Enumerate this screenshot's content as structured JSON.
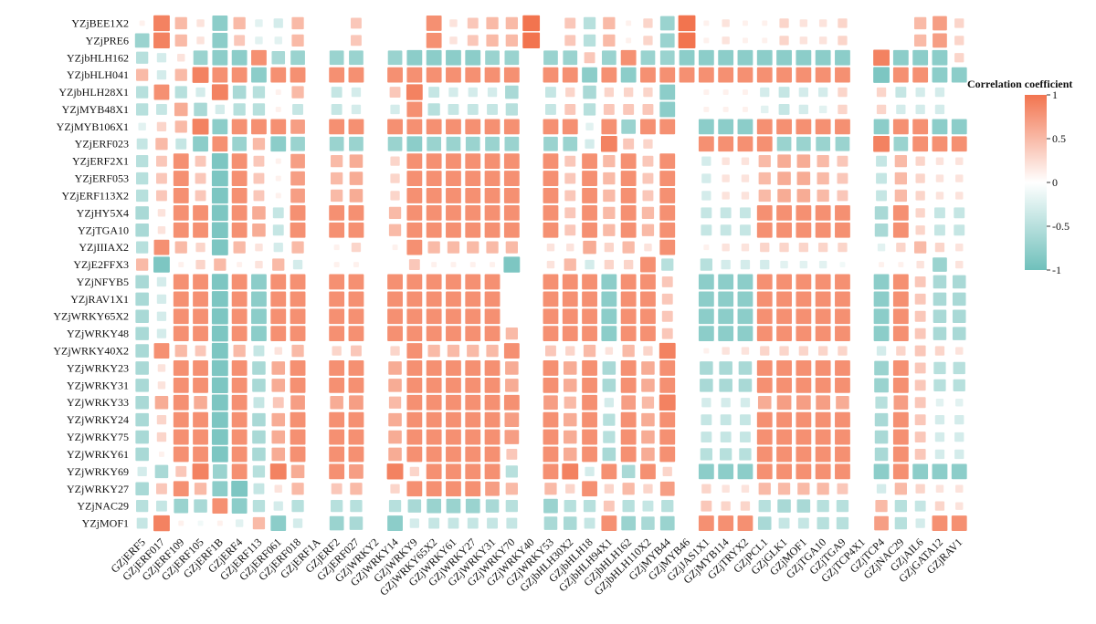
{
  "chart_data": {
    "type": "heatmap",
    "title": "",
    "xlabel": "",
    "ylabel": "",
    "rows": [
      "YZjBEE1X2",
      "YZjPRE6",
      "YZjbHLH162",
      "YZjbHLH041",
      "YZjbHLH28X1",
      "YZjMYB48X1",
      "YZjMYB106X1",
      "YZjERF023",
      "YZjERF2X1",
      "YZjERF053",
      "YZjERF113X2",
      "YZjHY5X4",
      "YZjTGA10",
      "YZjIIIAX2",
      "YZjE2FFX3",
      "YZjNFYB5",
      "YZjRAV1X1",
      "YZjWRKY65X2",
      "YZjWRKY48",
      "YZjWRKY40X2",
      "YZjWRKY23",
      "YZjWRKY31",
      "YZjWRKY33",
      "YZjWRKY24",
      "YZjWRKY75",
      "YZjWRKY61",
      "YZjWRKY69",
      "YZjWRKY27",
      "YZjNAC29",
      "YZjMOF1"
    ],
    "columns": [
      "GZjERF5",
      "GZjERF017",
      "GZjERF109",
      "GZjERF105",
      "GZjERF1B",
      "GZjERF4",
      "GZjERF113",
      "GZjERF061",
      "GZjERF018",
      "GZjERF1A",
      "GZjERF2",
      "GZjERF027",
      "GZjWRKY2",
      "GZjWRKY14",
      "GZjWRKY9",
      "GZjWRKY65X2",
      "GZjWRKY61",
      "GZjWRKY27",
      "GZjWRKY31",
      "GZjWRKY70",
      "GZjWRKY40",
      "GZjWRKY53",
      "GZjbHLH30X2",
      "GZjbHLH18",
      "GZjbHLH94X1",
      "GZjbHLH162",
      "GZjbHLH110X2",
      "GZjMYB44",
      "GZjMYB46",
      "GZjJAS1X1",
      "GZjMYB114",
      "GZjTRYX2",
      "GZjPCL1",
      "GZjGLK1",
      "GZjMOF1",
      "GZjTGA10",
      "GZjTGA9",
      "GZjTCP4X1",
      "GZjTCP4",
      "GZjNAC29",
      "GZjAIL6",
      "GZjGATA12",
      "GZjRAV1"
    ],
    "color_scale": {
      "min": -1,
      "max": 1,
      "low_color": "#6fc0bb",
      "mid_color": "#ffffff",
      "high_color": "#f2744f"
    },
    "legend": {
      "title": "Correlation coefficient",
      "ticks": [
        "1",
        "0.5",
        "0",
        "-0.5",
        "-1"
      ],
      "placement": "right"
    },
    "values": [
      [
        0.1,
        0.9,
        0.5,
        0.2,
        -0.8,
        0.5,
        -0.2,
        -0.3,
        0.5,
        0,
        0,
        0.4,
        0,
        0,
        0,
        0.8,
        0.2,
        0.4,
        0.5,
        0.5,
        1,
        0,
        0.4,
        -0.5,
        0.5,
        0.1,
        0.3,
        -0.7,
        1,
        0.1,
        0.2,
        0.1,
        0.1,
        0.3,
        0.2,
        0.2,
        0.3,
        0,
        0,
        0,
        0.5,
        0.7,
        0.3
      ],
      [
        -0.7,
        0.9,
        0.5,
        0.2,
        -0.8,
        0.4,
        -0.2,
        -0.2,
        0.5,
        0,
        0,
        0.4,
        0,
        0,
        0,
        0.8,
        0.2,
        0.4,
        0.5,
        0.5,
        1,
        0,
        0.4,
        -0.5,
        0.5,
        0.1,
        0.3,
        -0.7,
        1,
        0.1,
        0.2,
        0.1,
        0.1,
        0.3,
        0.2,
        0.2,
        0.3,
        0,
        0,
        0,
        0.5,
        0.7,
        0.3
      ],
      [
        -0.5,
        -0.3,
        0.2,
        -0.7,
        -0.8,
        -0.8,
        0.8,
        -0.6,
        -0.7,
        0,
        -0.7,
        -0.7,
        0,
        -0.7,
        -0.8,
        -0.8,
        -0.8,
        -0.8,
        -0.7,
        -0.7,
        0,
        -0.7,
        -0.7,
        0.4,
        -0.7,
        0.8,
        -0.7,
        -0.7,
        -0.8,
        -0.8,
        -0.8,
        -0.8,
        -0.8,
        -0.8,
        -0.8,
        -0.8,
        -0.8,
        0,
        0.9,
        -0.8,
        -0.8,
        -0.8,
        0.3
      ],
      [
        0.5,
        -0.3,
        0.5,
        0.9,
        0.8,
        0.8,
        -0.8,
        0.8,
        0.8,
        0,
        0.8,
        0.8,
        0,
        0.8,
        0.8,
        0.8,
        0.8,
        0.8,
        0.8,
        0.8,
        0,
        0.8,
        0.8,
        -0.8,
        0.8,
        -0.8,
        0.8,
        0.8,
        0.8,
        0.8,
        0.8,
        0.8,
        0.8,
        0.8,
        0.8,
        0.8,
        0.8,
        0,
        -0.9,
        0.8,
        0.8,
        -0.8,
        -0.8
      ],
      [
        -0.5,
        0.8,
        -0.5,
        -0.3,
        0.9,
        -0.6,
        -0.5,
        0.1,
        0.5,
        0,
        -0.4,
        -0.3,
        0,
        0.4,
        0.9,
        -0.4,
        -0.3,
        -0.3,
        -0.3,
        -0.6,
        0,
        -0.4,
        0.3,
        -0.6,
        0.3,
        0.3,
        0.3,
        -0.8,
        0,
        0.1,
        0.1,
        0.1,
        -0.3,
        -0.4,
        -0.3,
        -0.3,
        0.3,
        0,
        0.3,
        -0.4,
        -0.3,
        -0.3,
        0
      ],
      [
        -0.5,
        -0.4,
        0.6,
        -0.6,
        -0.3,
        -0.5,
        -0.5,
        0.1,
        -0.4,
        0,
        -0.4,
        -0.3,
        0,
        -0.3,
        0.8,
        -0.5,
        -0.4,
        -0.4,
        -0.4,
        -0.5,
        0,
        -0.4,
        0.4,
        -0.5,
        0.4,
        0.4,
        0.4,
        -0.8,
        0,
        0.1,
        0.1,
        0.1,
        -0.2,
        -0.4,
        -0.3,
        -0.2,
        0.3,
        0,
        0.3,
        -0.3,
        -0.3,
        -0.3,
        0
      ],
      [
        -0.2,
        0.3,
        0.5,
        0.9,
        -0.8,
        0.8,
        0.8,
        0.8,
        0.7,
        0,
        0.8,
        0.8,
        0,
        0.8,
        0.8,
        0.8,
        0.8,
        0.8,
        0.8,
        0.8,
        0,
        0.8,
        0.8,
        -0.2,
        0.8,
        -0.7,
        0.8,
        0.8,
        0,
        -0.8,
        -0.8,
        -0.8,
        0.8,
        0.8,
        0.8,
        0.8,
        0.8,
        0,
        -0.8,
        0.8,
        0.8,
        -0.8,
        -0.8
      ],
      [
        -0.4,
        0.5,
        -0.4,
        -0.8,
        0.8,
        -0.7,
        0.5,
        -0.8,
        -0.7,
        0,
        -0.7,
        -0.7,
        0,
        -0.7,
        -0.8,
        -0.7,
        -0.7,
        -0.7,
        -0.7,
        -0.7,
        0,
        -0.7,
        -0.7,
        -0.3,
        0.9,
        0.4,
        0.3,
        0,
        0,
        0.8,
        0.8,
        0.8,
        0.8,
        -0.7,
        -0.7,
        -0.7,
        -0.7,
        0,
        0.9,
        -0.7,
        0.8,
        0.8,
        0.8
      ],
      [
        -0.5,
        0.4,
        0.8,
        0.4,
        -0.9,
        0.8,
        0.4,
        0.1,
        0.7,
        0,
        0.5,
        0.6,
        0,
        0.3,
        0.8,
        0.8,
        0.8,
        0.8,
        0.8,
        0.8,
        0,
        0.8,
        0.4,
        0.8,
        0.5,
        0.8,
        0.4,
        0.8,
        0,
        -0.3,
        0.2,
        0.2,
        0.5,
        0.6,
        0.6,
        0.5,
        0.4,
        0,
        -0.4,
        0.5,
        0.3,
        0.2,
        0.2
      ],
      [
        -0.5,
        0.4,
        0.8,
        0.4,
        -0.9,
        0.8,
        0.4,
        0.1,
        0.7,
        0,
        0.5,
        0.6,
        0,
        0.3,
        0.8,
        0.8,
        0.8,
        0.8,
        0.8,
        0.8,
        0,
        0.8,
        0.4,
        0.8,
        0.5,
        0.8,
        0.4,
        0.8,
        0,
        -0.3,
        0.2,
        0.2,
        0.5,
        0.6,
        0.6,
        0.5,
        0.4,
        0,
        -0.4,
        0.5,
        0.3,
        0.2,
        0.2
      ],
      [
        -0.5,
        0.4,
        0.8,
        0.4,
        -0.9,
        0.8,
        0.4,
        0.1,
        0.7,
        0,
        0.5,
        0.6,
        0,
        0.3,
        0.8,
        0.8,
        0.8,
        0.8,
        0.8,
        0.8,
        0,
        0.8,
        0.4,
        0.8,
        0.5,
        0.8,
        0.4,
        0.8,
        0,
        -0.3,
        0.2,
        0.2,
        0.5,
        0.6,
        0.6,
        0.5,
        0.4,
        0,
        -0.4,
        0.5,
        0.3,
        0.2,
        0.2
      ],
      [
        -0.6,
        0.2,
        0.8,
        0.8,
        -0.9,
        0.8,
        0.6,
        -0.4,
        0.8,
        0,
        0.8,
        0.8,
        0,
        0.5,
        0.8,
        0.8,
        0.8,
        0.8,
        0.8,
        0.8,
        0,
        0.8,
        0.4,
        0.8,
        0.5,
        0.8,
        0.5,
        0.8,
        0,
        -0.4,
        -0.4,
        -0.4,
        0.8,
        0.8,
        0.8,
        0.8,
        0.8,
        0,
        -0.6,
        0.8,
        0.3,
        -0.4,
        -0.4
      ],
      [
        -0.6,
        0.2,
        0.8,
        0.8,
        -0.9,
        0.8,
        0.6,
        -0.4,
        0.8,
        0,
        0.8,
        0.8,
        0,
        0.5,
        0.8,
        0.8,
        0.8,
        0.8,
        0.8,
        0.8,
        0,
        0.8,
        0.4,
        0.8,
        0.5,
        0.8,
        0.5,
        0.8,
        0,
        -0.4,
        -0.4,
        -0.4,
        0.8,
        0.8,
        0.8,
        0.8,
        0.8,
        0,
        -0.6,
        0.8,
        0.3,
        -0.4,
        -0.4
      ],
      [
        -0.5,
        0.8,
        0.5,
        0.3,
        -0.9,
        0.5,
        0.2,
        -0.3,
        0.5,
        0,
        0.1,
        0.3,
        0,
        0.1,
        0.8,
        0.5,
        0.5,
        0.5,
        0.5,
        0.5,
        0,
        0.2,
        0.2,
        0.6,
        0.3,
        0.5,
        0.2,
        0.8,
        0,
        0.1,
        0.2,
        0.2,
        0.3,
        0.3,
        0.3,
        0.3,
        0.3,
        0,
        -0.2,
        0.3,
        0.5,
        0.3,
        0.2
      ],
      [
        0.5,
        -0.9,
        0.1,
        0.3,
        0.5,
        0.1,
        0.2,
        0.5,
        -0.3,
        0,
        0.1,
        0.1,
        0,
        0,
        0.4,
        0.1,
        0.1,
        0.1,
        0.1,
        -0.9,
        0,
        0.2,
        0.5,
        -0.3,
        0.3,
        0.3,
        0.8,
        -0.5,
        0,
        -0.5,
        -0.3,
        -0.3,
        -0.3,
        -0.2,
        -0.2,
        -0.2,
        -0.1,
        0,
        0.1,
        0.1,
        0.2,
        -0.7,
        0.2
      ],
      [
        -0.6,
        -0.3,
        0.8,
        0.8,
        -0.9,
        0.8,
        -0.8,
        0.8,
        0.8,
        0,
        0.8,
        0.8,
        0,
        0.8,
        0.8,
        0.8,
        0.8,
        0.8,
        0.8,
        0,
        0,
        0.8,
        0.8,
        0.8,
        -0.8,
        0.8,
        0.8,
        0.4,
        0,
        -0.8,
        -0.8,
        -0.8,
        0.8,
        0.8,
        0.8,
        0.8,
        0.8,
        0,
        -0.8,
        0.8,
        0.4,
        -0.6,
        -0.6
      ],
      [
        -0.6,
        -0.3,
        0.8,
        0.8,
        -0.9,
        0.8,
        -0.8,
        0.8,
        0.8,
        0,
        0.8,
        0.8,
        0,
        0.8,
        0.8,
        0.8,
        0.8,
        0.8,
        0.8,
        0,
        0,
        0.8,
        0.8,
        0.8,
        -0.8,
        0.8,
        0.8,
        0.4,
        0,
        -0.8,
        -0.8,
        -0.8,
        0.8,
        0.8,
        0.8,
        0.8,
        0.8,
        0,
        -0.8,
        0.8,
        0.4,
        -0.6,
        -0.6
      ],
      [
        -0.6,
        -0.3,
        0.8,
        0.8,
        -0.9,
        0.8,
        -0.8,
        0.8,
        0.8,
        0,
        0.8,
        0.8,
        0,
        0.8,
        0.8,
        0.8,
        0.8,
        0.8,
        0.8,
        0,
        0,
        0.8,
        0.8,
        0.8,
        -0.8,
        0.8,
        0.8,
        0.4,
        0,
        -0.8,
        -0.8,
        -0.8,
        0.8,
        0.8,
        0.8,
        0.8,
        0.8,
        0,
        -0.8,
        0.8,
        0.4,
        -0.6,
        -0.6
      ],
      [
        -0.6,
        -0.3,
        0.8,
        0.8,
        -0.9,
        0.8,
        -0.8,
        0.8,
        0.8,
        0,
        0.8,
        0.8,
        0,
        0.8,
        0.8,
        0.8,
        0.8,
        0.8,
        0.8,
        0.5,
        0,
        0.8,
        0.8,
        0.8,
        -0.8,
        0.8,
        0.8,
        0.4,
        0,
        -0.8,
        -0.8,
        -0.8,
        0.8,
        0.8,
        0.8,
        0.8,
        0.8,
        0,
        -0.8,
        0.8,
        0.4,
        -0.6,
        -0.6
      ],
      [
        -0.6,
        0.8,
        0.5,
        0.4,
        -0.9,
        0.5,
        -0.4,
        0.2,
        0.5,
        0,
        0.3,
        0.4,
        0,
        0.3,
        0.8,
        0.5,
        0.5,
        0.5,
        0.5,
        0.8,
        0,
        0.4,
        0.3,
        0.5,
        0.2,
        0.5,
        0.3,
        0.9,
        0,
        0.1,
        0.2,
        0.2,
        0.3,
        0.3,
        0.3,
        0.3,
        0.3,
        0,
        -0.3,
        0.3,
        0.4,
        0.3,
        0.2
      ],
      [
        -0.6,
        0.2,
        0.8,
        0.8,
        -0.9,
        0.8,
        -0.6,
        0.6,
        0.8,
        0,
        0.8,
        0.8,
        0,
        0.6,
        0.8,
        0.8,
        0.8,
        0.8,
        0.8,
        0.6,
        0,
        0.8,
        0.6,
        0.8,
        -0.6,
        0.8,
        0.6,
        0.8,
        0,
        -0.6,
        -0.6,
        -0.6,
        0.8,
        0.8,
        0.8,
        0.8,
        0.8,
        0,
        -0.7,
        0.8,
        0.4,
        -0.5,
        -0.5
      ],
      [
        -0.6,
        0.2,
        0.8,
        0.8,
        -0.9,
        0.8,
        -0.6,
        0.6,
        0.8,
        0,
        0.8,
        0.8,
        0,
        0.6,
        0.8,
        0.8,
        0.8,
        0.8,
        0.8,
        0.6,
        0,
        0.8,
        0.6,
        0.8,
        -0.6,
        0.8,
        0.6,
        0.8,
        0,
        -0.6,
        -0.6,
        -0.6,
        0.8,
        0.8,
        0.8,
        0.8,
        0.8,
        0,
        -0.7,
        0.8,
        0.4,
        -0.5,
        -0.5
      ],
      [
        -0.6,
        0.6,
        0.8,
        0.6,
        -0.9,
        0.8,
        -0.4,
        0.4,
        0.7,
        0,
        0.6,
        0.7,
        0,
        0.5,
        0.8,
        0.8,
        0.8,
        0.8,
        0.8,
        0.8,
        0,
        0.7,
        0.5,
        0.8,
        -0.3,
        0.7,
        0.5,
        0.9,
        0,
        -0.3,
        -0.3,
        -0.3,
        0.6,
        0.7,
        0.7,
        0.7,
        0.6,
        0,
        -0.5,
        0.7,
        0.4,
        -0.2,
        -0.2
      ],
      [
        -0.6,
        0.3,
        0.8,
        0.8,
        -0.9,
        0.8,
        -0.6,
        0.6,
        0.8,
        0,
        0.8,
        0.8,
        0,
        0.6,
        0.8,
        0.8,
        0.8,
        0.8,
        0.8,
        0.7,
        0,
        0.8,
        0.6,
        0.8,
        -0.5,
        0.8,
        0.6,
        0.8,
        0,
        -0.4,
        -0.4,
        -0.4,
        0.8,
        0.8,
        0.8,
        0.8,
        0.8,
        0,
        -0.6,
        0.8,
        0.4,
        -0.3,
        -0.3
      ],
      [
        -0.6,
        0.3,
        0.8,
        0.8,
        -0.9,
        0.8,
        -0.6,
        0.6,
        0.8,
        0,
        0.8,
        0.8,
        0,
        0.6,
        0.8,
        0.8,
        0.8,
        0.8,
        0.8,
        0.7,
        0,
        0.8,
        0.6,
        0.8,
        -0.5,
        0.8,
        0.6,
        0.8,
        0,
        -0.4,
        -0.4,
        -0.4,
        0.8,
        0.8,
        0.8,
        0.8,
        0.8,
        0,
        -0.6,
        0.8,
        0.4,
        -0.3,
        -0.3
      ],
      [
        -0.6,
        0.1,
        0.8,
        0.8,
        -0.9,
        0.8,
        -0.6,
        0.6,
        0.8,
        0,
        0.8,
        0.8,
        0,
        0.6,
        0.8,
        0.8,
        0.8,
        0.8,
        0.8,
        0.4,
        0,
        0.8,
        0.6,
        0.8,
        -0.6,
        0.8,
        0.6,
        0.8,
        0,
        -0.5,
        -0.5,
        -0.5,
        0.8,
        0.8,
        0.8,
        0.8,
        0.8,
        0,
        -0.6,
        0.8,
        0.4,
        -0.3,
        -0.3
      ],
      [
        -0.3,
        -0.6,
        0.4,
        0.9,
        -0.7,
        0.8,
        -0.5,
        0.9,
        0.6,
        0,
        0.8,
        0.7,
        0,
        0.9,
        0.3,
        0.8,
        0.8,
        0.8,
        0.8,
        -0.5,
        0,
        0.8,
        0.9,
        -0.3,
        0.8,
        -0.6,
        0.8,
        0.3,
        0,
        -0.8,
        -0.8,
        -0.8,
        0.8,
        0.8,
        0.8,
        0.8,
        0.8,
        0,
        -0.8,
        0.8,
        -0.8,
        -0.8,
        -0.8
      ],
      [
        -0.6,
        0.4,
        0.8,
        0.5,
        -0.8,
        -0.9,
        -0.4,
        0.2,
        0.5,
        0,
        0.4,
        0.5,
        0,
        0.3,
        0.8,
        0.8,
        0.8,
        0.8,
        0.7,
        0.5,
        0,
        0.5,
        0.3,
        0.8,
        0.3,
        0.5,
        0.3,
        0.7,
        0,
        0.3,
        0.2,
        0.2,
        0.5,
        0.5,
        0.5,
        0.5,
        0.4,
        0,
        -0.3,
        0.5,
        0.3,
        0.2,
        0.2
      ],
      [
        -0.5,
        -0.4,
        -0.7,
        -0.6,
        0.8,
        -0.8,
        -0.5,
        -0.3,
        -0.5,
        0,
        -0.5,
        -0.5,
        0,
        -0.5,
        -0.6,
        -0.7,
        -0.7,
        -0.7,
        -0.6,
        -0.5,
        0,
        -0.7,
        -0.5,
        -0.5,
        0.4,
        -0.5,
        -0.4,
        -0.5,
        0,
        0.4,
        0.3,
        0.3,
        -0.5,
        -0.6,
        -0.6,
        -0.5,
        -0.5,
        0,
        0.5,
        -0.5,
        -0.4,
        0.3,
        0.2
      ],
      [
        -0.4,
        0.9,
        0.1,
        -0.1,
        0.1,
        -0.2,
        0.5,
        -0.8,
        -0.3,
        0,
        -0.7,
        -0.6,
        0,
        -0.8,
        -0.3,
        -0.4,
        -0.4,
        -0.4,
        -0.4,
        -0.4,
        0,
        -0.6,
        -0.6,
        -0.4,
        0.8,
        -0.7,
        -0.6,
        -0.7,
        0,
        0.8,
        0.8,
        0.8,
        -0.6,
        -0.4,
        -0.4,
        -0.5,
        -0.5,
        0,
        0.7,
        -0.5,
        -0.3,
        0.8,
        0.8
      ]
    ]
  }
}
